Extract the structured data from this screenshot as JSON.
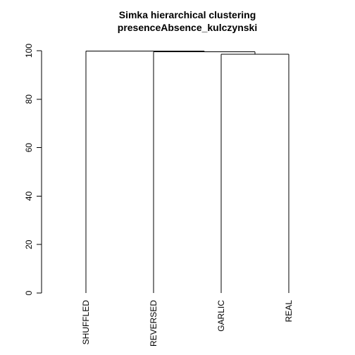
{
  "title": "Simka hierarchical clustering",
  "subtitle": "presenceAbsence_kulczynski",
  "chart_data": {
    "type": "dendrogram",
    "leaves": [
      "SHUFFLED",
      "REVERSED",
      "GARLIC",
      "REAL"
    ],
    "merges": [
      {
        "left": "GARLIC",
        "right": "REAL",
        "height": 98.5
      },
      {
        "left": "REVERSED",
        "right": "GARLIC+REAL",
        "height": 99.5
      },
      {
        "left": "SHUFFLED",
        "right": "REVERSED+GARLIC+REAL",
        "height": 99.9
      }
    ],
    "yaxis": {
      "ticks": [
        0,
        20,
        40,
        60,
        80,
        100
      ],
      "ylim": [
        0,
        100
      ]
    }
  }
}
